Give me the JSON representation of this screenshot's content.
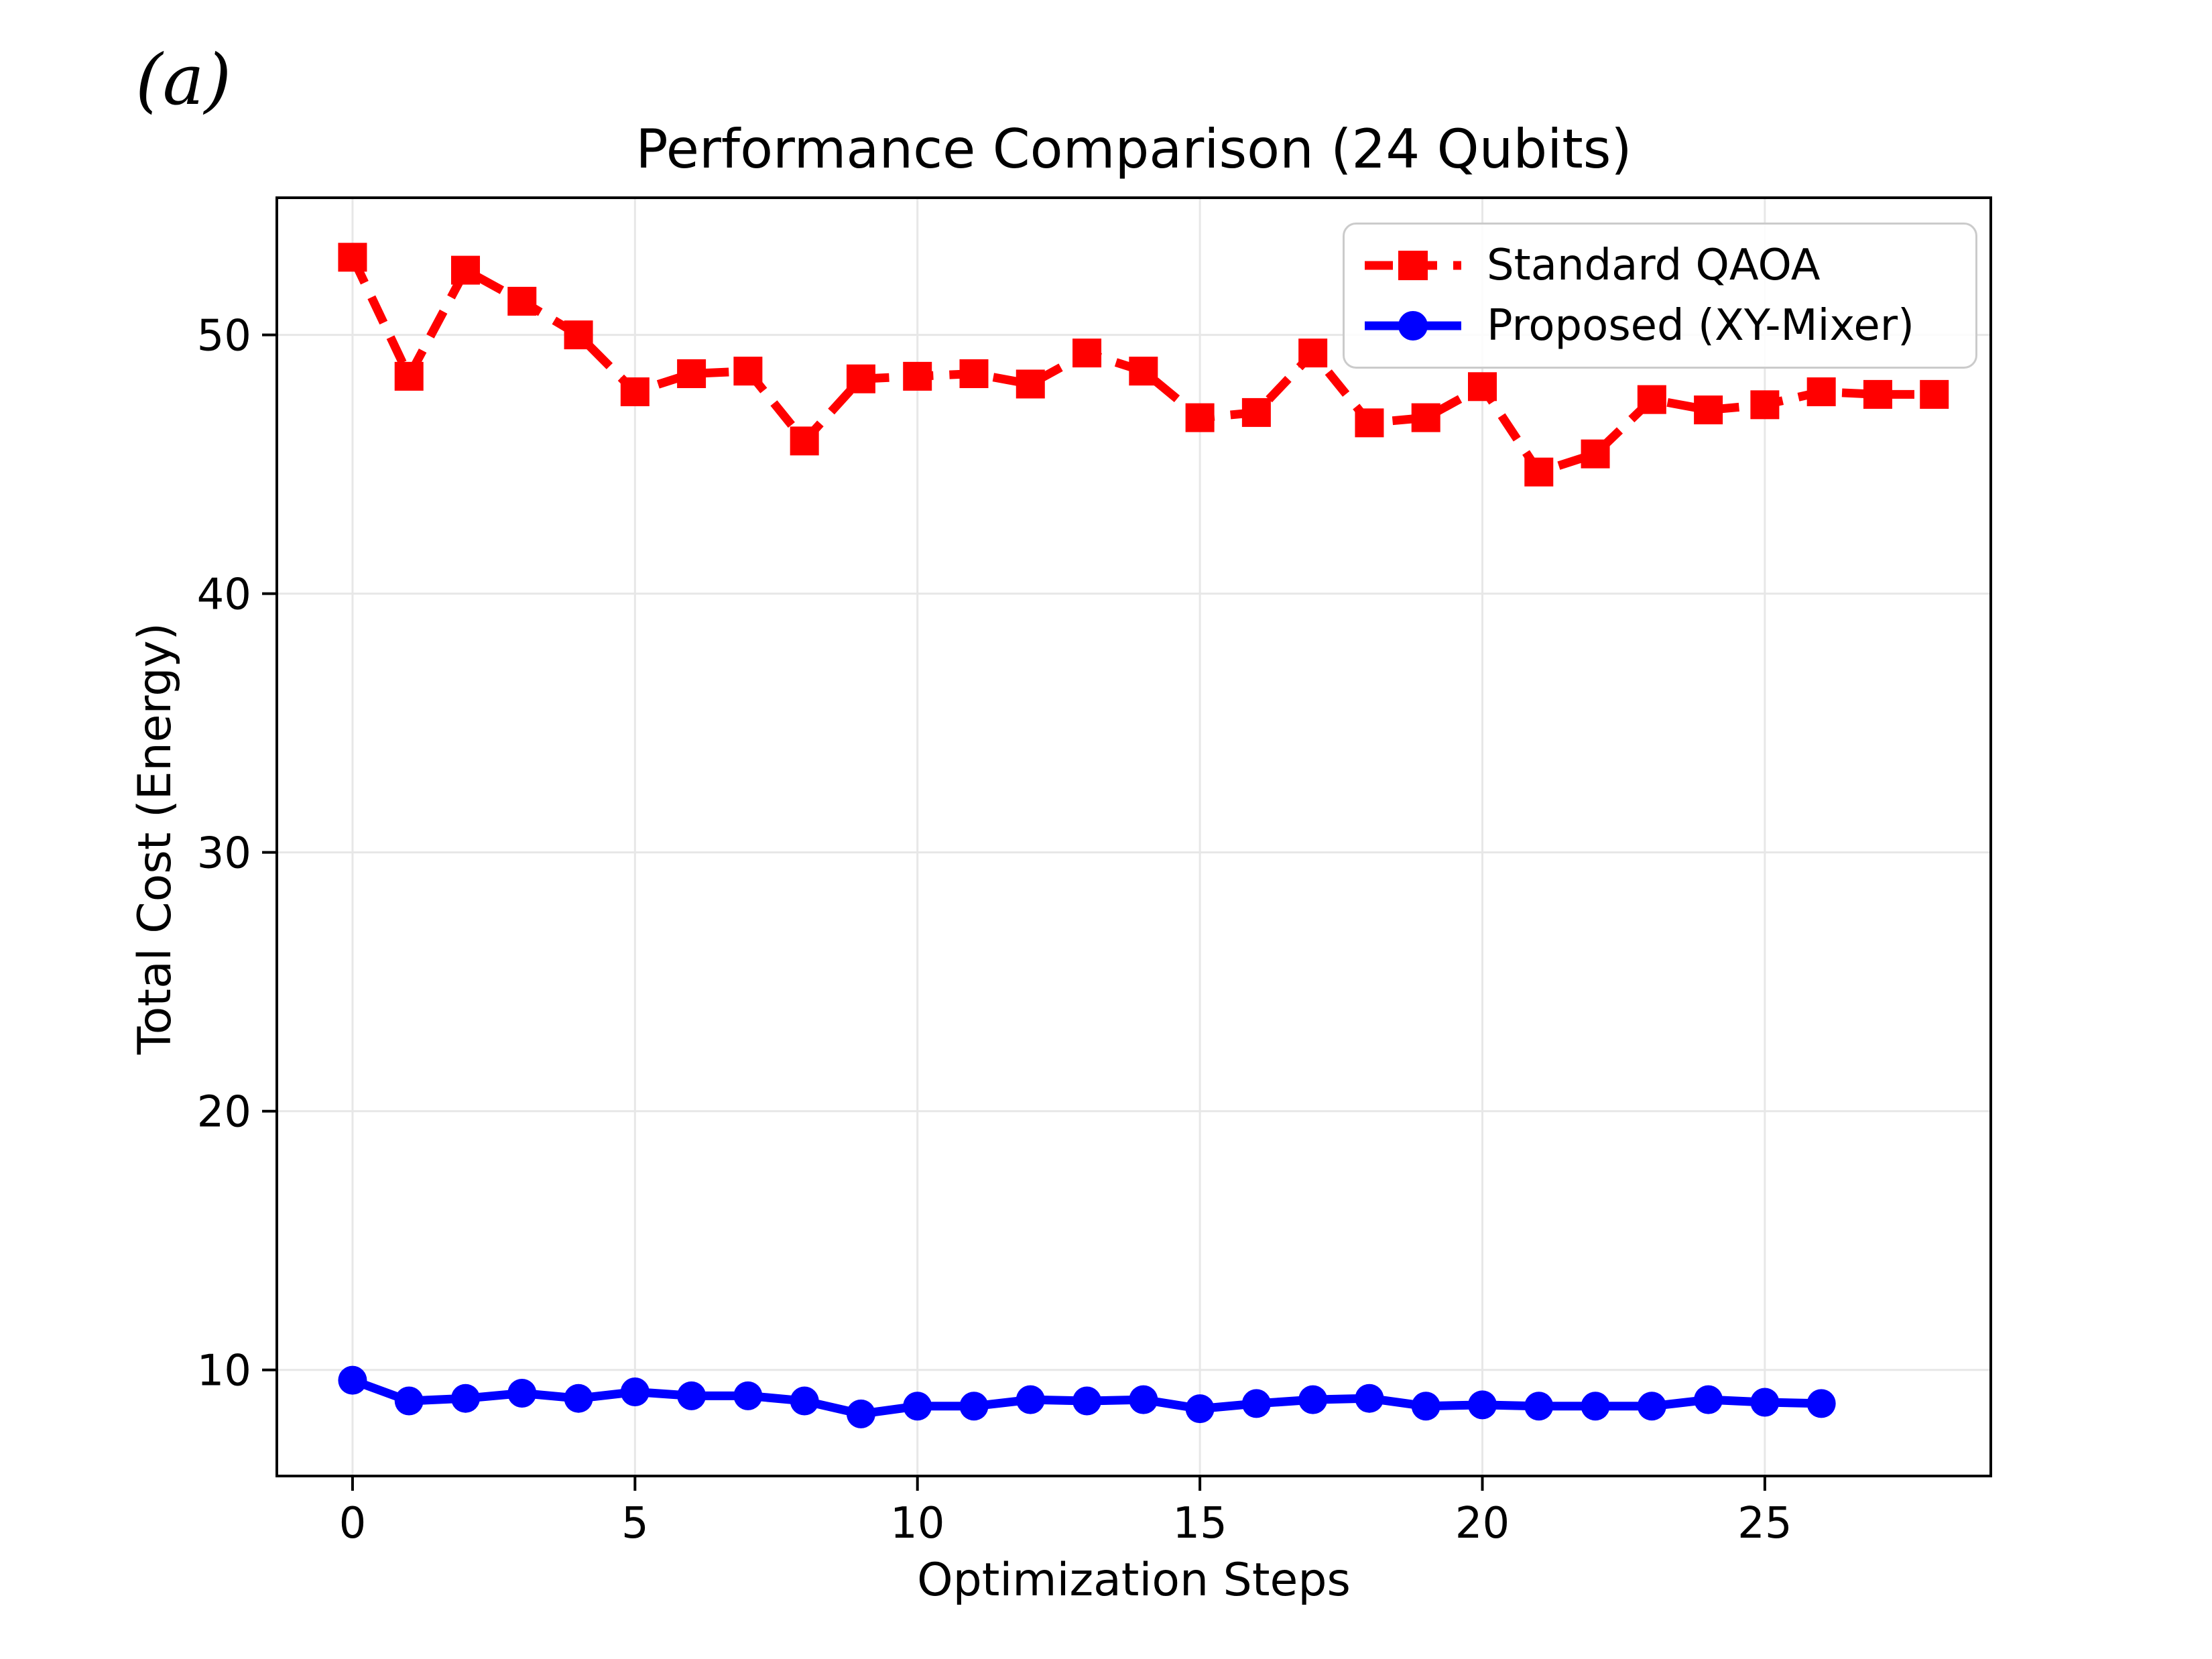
{
  "figure_label": "(a)",
  "chart_data": {
    "type": "line",
    "title": "Performance Comparison (24 Qubits)",
    "xlabel": "Optimization Steps",
    "ylabel": "Total Cost (Energy)",
    "xlim": [
      -1.34,
      29.0
    ],
    "ylim": [
      5.9,
      55.3
    ],
    "x_ticks": [
      0,
      5,
      10,
      15,
      20,
      25
    ],
    "y_ticks": [
      10,
      20,
      30,
      40,
      50
    ],
    "grid": true,
    "grid_color": "#e7e7e7",
    "axis_color": "#000000",
    "background_color": "#ffffff",
    "legend_position": "upper right",
    "series": [
      {
        "name": "Standard QAOA",
        "color": "#ff0000",
        "line_style": "dashed",
        "marker": "square",
        "x": [
          0,
          1,
          2,
          3,
          4,
          5,
          6,
          7,
          8,
          9,
          10,
          11,
          12,
          13,
          14,
          15,
          16,
          17,
          18,
          19,
          20,
          21,
          22,
          23,
          24,
          25,
          26,
          27,
          28
        ],
        "values": [
          53.0,
          48.4,
          52.5,
          51.3,
          50.0,
          47.8,
          48.5,
          48.6,
          45.9,
          48.3,
          48.4,
          48.5,
          48.1,
          49.3,
          48.6,
          46.8,
          47.0,
          49.3,
          46.6,
          46.8,
          48.0,
          44.7,
          45.4,
          47.5,
          47.1,
          47.3,
          47.8,
          47.7,
          47.7
        ]
      },
      {
        "name": "Proposed (XY-Mixer)",
        "color": "#0000ff",
        "line_style": "solid",
        "marker": "circle",
        "x": [
          0,
          1,
          2,
          3,
          4,
          5,
          6,
          7,
          8,
          9,
          10,
          11,
          12,
          13,
          14,
          15,
          16,
          17,
          18,
          19,
          20,
          21,
          22,
          23,
          24,
          25,
          26
        ],
        "values": [
          9.6,
          8.8,
          8.9,
          9.1,
          8.9,
          9.15,
          9.0,
          9.0,
          8.8,
          8.3,
          8.6,
          8.6,
          8.85,
          8.8,
          8.85,
          8.5,
          8.7,
          8.85,
          8.9,
          8.6,
          8.65,
          8.6,
          8.6,
          8.6,
          8.85,
          8.75,
          8.7
        ]
      }
    ]
  }
}
